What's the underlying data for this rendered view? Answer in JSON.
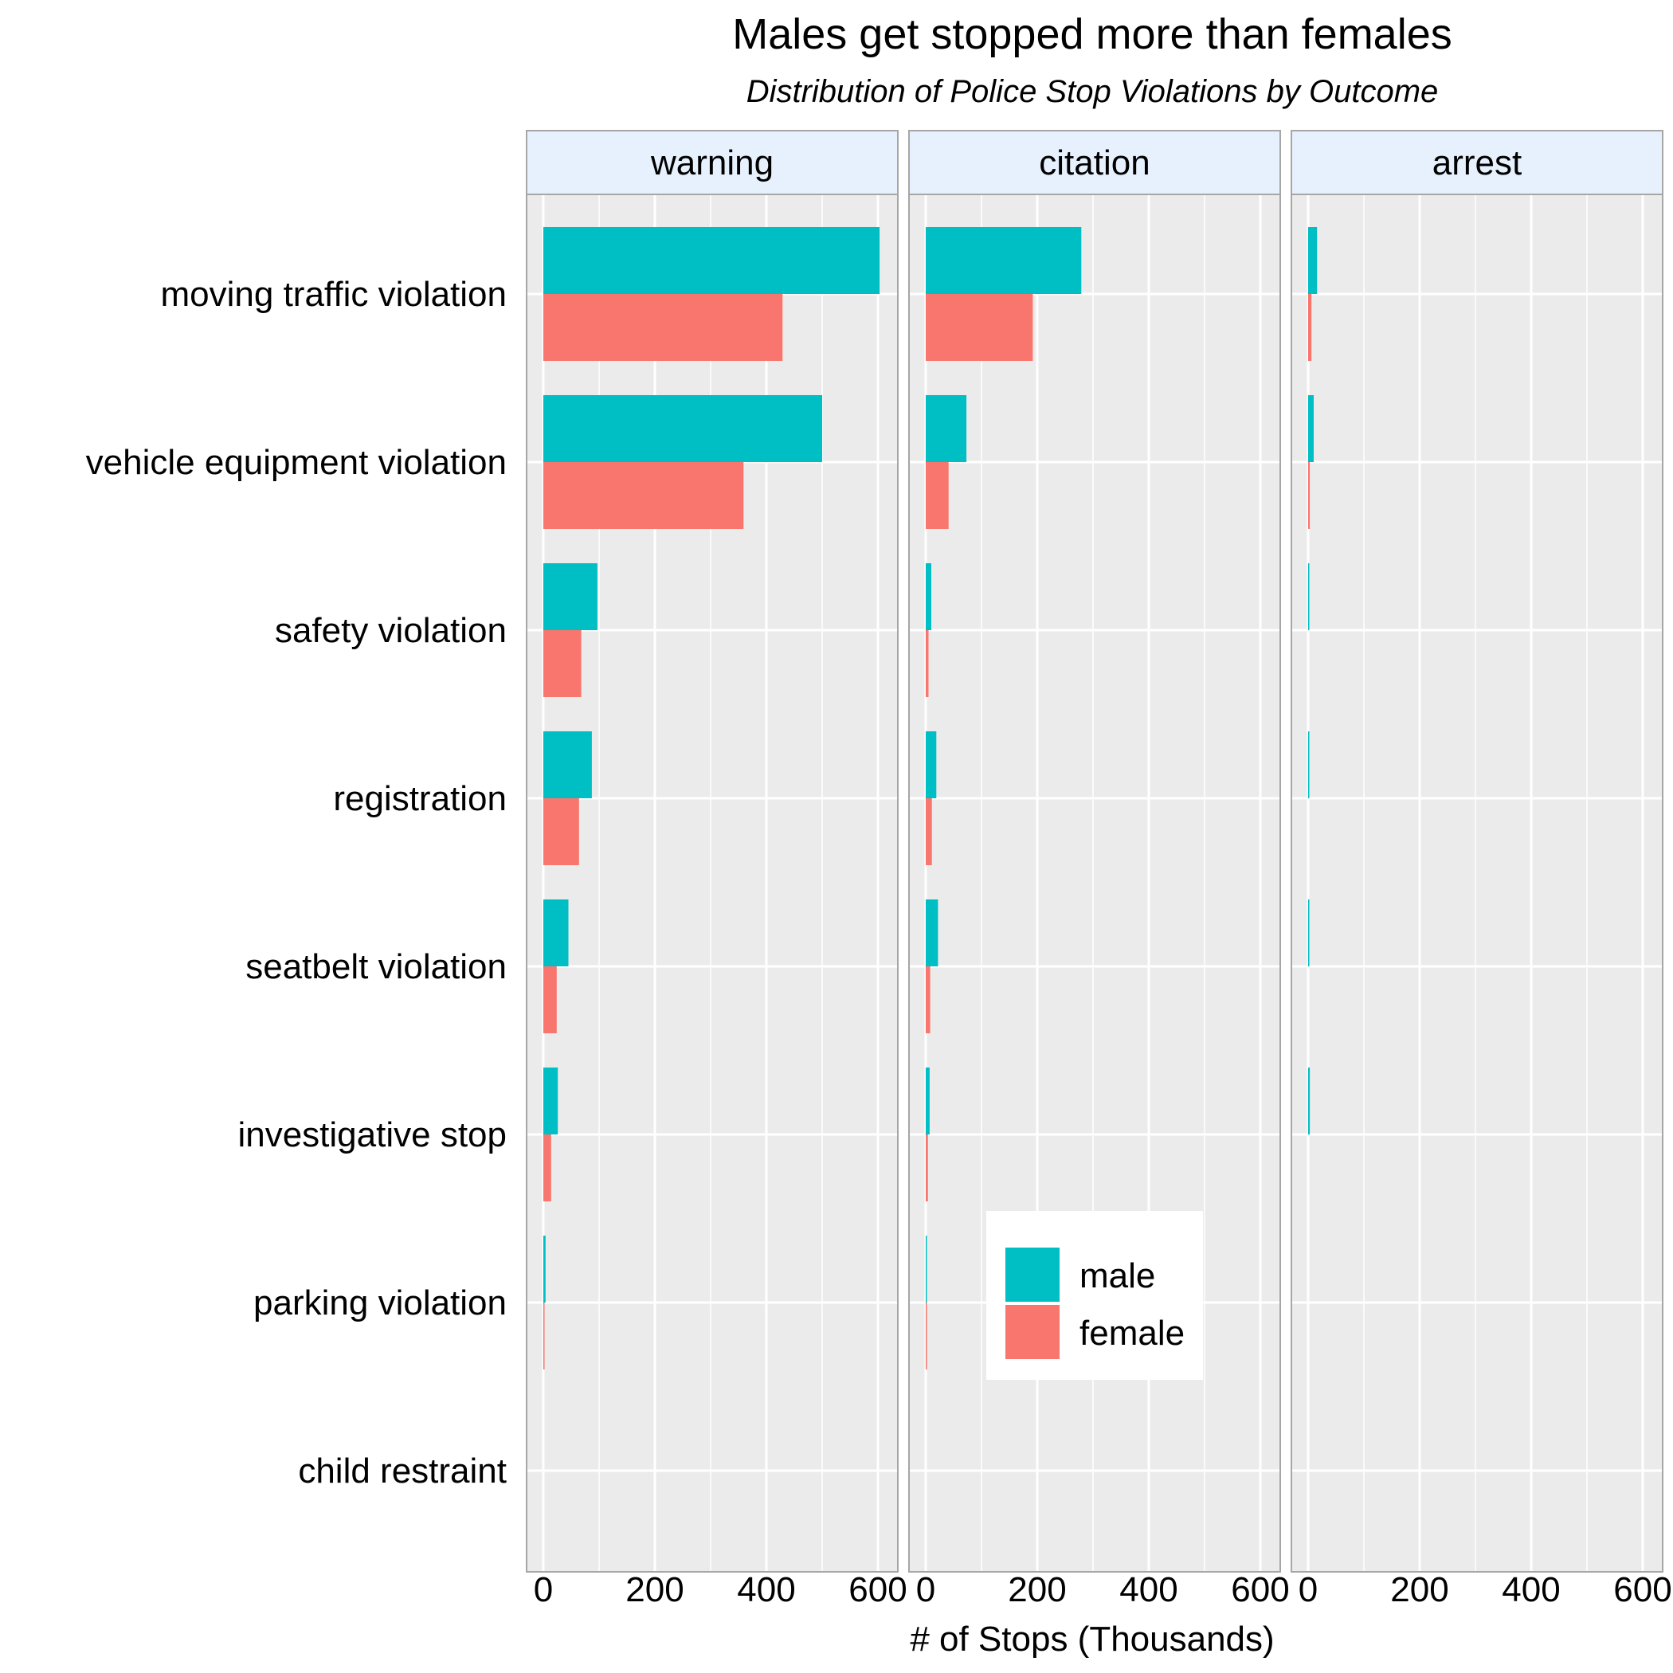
{
  "chart_data": {
    "type": "bar",
    "orientation": "horizontal",
    "title": "Males get stopped more than females",
    "subtitle": "Distribution of Police Stop Violations by Outcome",
    "xlabel": "# of Stops (Thousands)",
    "xlim": [
      0,
      630
    ],
    "x_ticks": [
      "0",
      "200",
      "400",
      "600"
    ],
    "x_tick_values": [
      0,
      200,
      400,
      600
    ],
    "facets": [
      "warning",
      "citation",
      "arrest"
    ],
    "categories": [
      "moving traffic violation",
      "vehicle equipment violation",
      "safety violation",
      "registration",
      "seatbelt violation",
      "investigative stop",
      "parking violation",
      "child restraint"
    ],
    "series": [
      {
        "name": "male",
        "color": "#00BFC4",
        "values": {
          "warning": [
            603,
            500,
            97,
            87,
            45,
            26,
            4,
            0
          ],
          "citation": [
            279,
            73,
            10,
            19,
            22,
            7,
            2,
            0
          ],
          "arrest": [
            16,
            10,
            1,
            1,
            1,
            3,
            0,
            0
          ]
        }
      },
      {
        "name": "female",
        "color": "#F8766D",
        "values": {
          "warning": [
            429,
            359,
            68,
            64,
            24,
            14,
            2,
            0
          ],
          "citation": [
            192,
            41,
            5,
            11,
            8,
            4,
            1,
            0
          ],
          "arrest": [
            6,
            3,
            0,
            0,
            0,
            0,
            0,
            0
          ]
        }
      }
    ],
    "grid": true,
    "legend_position": "inside-bottom-right-of-middle-panel",
    "panel_background": "#EBEBEB",
    "strip_background": "#E6F1FD",
    "grid_color": "#FFFFFF"
  }
}
